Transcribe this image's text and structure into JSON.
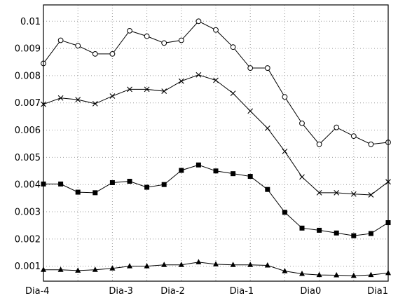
{
  "chart_data": {
    "type": "line",
    "title": "",
    "xlabel": "",
    "ylabel": "",
    "xlim": [
      0,
      20
    ],
    "ylim": [
      0.00045,
      0.0106
    ],
    "grid": true,
    "legend": "none",
    "x_ticks": [
      {
        "label": "Dia-4",
        "x": 0
      },
      {
        "label": "Dia-3",
        "x": 4.5
      },
      {
        "label": "Dia-2",
        "x": 7.5
      },
      {
        "label": "Dia-1",
        "x": 11.5
      },
      {
        "label": "Dia0",
        "x": 15.5
      },
      {
        "label": "Dia1",
        "x": 20
      }
    ],
    "x_minor_gridlines": [
      2,
      4,
      6,
      8,
      10,
      12,
      14,
      16,
      18
    ],
    "y_ticks": [
      {
        "label": "0.001",
        "y": 0.001
      },
      {
        "label": "0.002",
        "y": 0.002
      },
      {
        "label": "0.003",
        "y": 0.003
      },
      {
        "label": "0.004",
        "y": 0.004
      },
      {
        "label": "0.005",
        "y": 0.005
      },
      {
        "label": "0.006",
        "y": 0.006
      },
      {
        "label": "0.007",
        "y": 0.007
      },
      {
        "label": "0.008",
        "y": 0.008
      },
      {
        "label": "0.009",
        "y": 0.009
      },
      {
        "label": "0.01",
        "y": 0.01
      }
    ],
    "x": [
      0,
      1,
      2,
      3,
      4,
      5,
      6,
      7,
      8,
      9,
      10,
      11,
      12,
      13,
      14,
      15,
      16,
      17,
      18,
      19,
      20
    ],
    "series": [
      {
        "marker": "circle",
        "values": [
          0.00845,
          0.0093,
          0.0091,
          0.0088,
          0.0088,
          0.00965,
          0.00945,
          0.0092,
          0.0093,
          0.01,
          0.00968,
          0.00905,
          0.00828,
          0.00828,
          0.00722,
          0.00625,
          0.00548,
          0.0061,
          0.00578,
          0.00548,
          0.00555
        ]
      },
      {
        "marker": "cross",
        "values": [
          0.00695,
          0.00718,
          0.00712,
          0.00697,
          0.00725,
          0.0075,
          0.0075,
          0.00743,
          0.0078,
          0.00803,
          0.00783,
          0.00735,
          0.0067,
          0.00607,
          0.00522,
          0.00428,
          0.0037,
          0.0037,
          0.00365,
          0.00362,
          0.0041
        ]
      },
      {
        "marker": "square",
        "values": [
          0.00402,
          0.00402,
          0.00372,
          0.0037,
          0.00407,
          0.00412,
          0.0039,
          0.004,
          0.00452,
          0.00472,
          0.0045,
          0.0044,
          0.0043,
          0.00382,
          0.00298,
          0.0024,
          0.00232,
          0.00222,
          0.00212,
          0.0022,
          0.0026
        ]
      },
      {
        "marker": "triangle",
        "values": [
          0.00087,
          0.00087,
          0.00084,
          0.00087,
          0.00092,
          0.001,
          0.001,
          0.00105,
          0.00105,
          0.00115,
          0.00107,
          0.00105,
          0.00105,
          0.00103,
          0.00082,
          0.00072,
          0.00068,
          0.00067,
          0.00065,
          0.00068,
          0.00075
        ]
      }
    ],
    "colors": {
      "line": "#000000",
      "grid": "#9a9a9a",
      "frame": "#000000",
      "background": "#ffffff"
    }
  }
}
